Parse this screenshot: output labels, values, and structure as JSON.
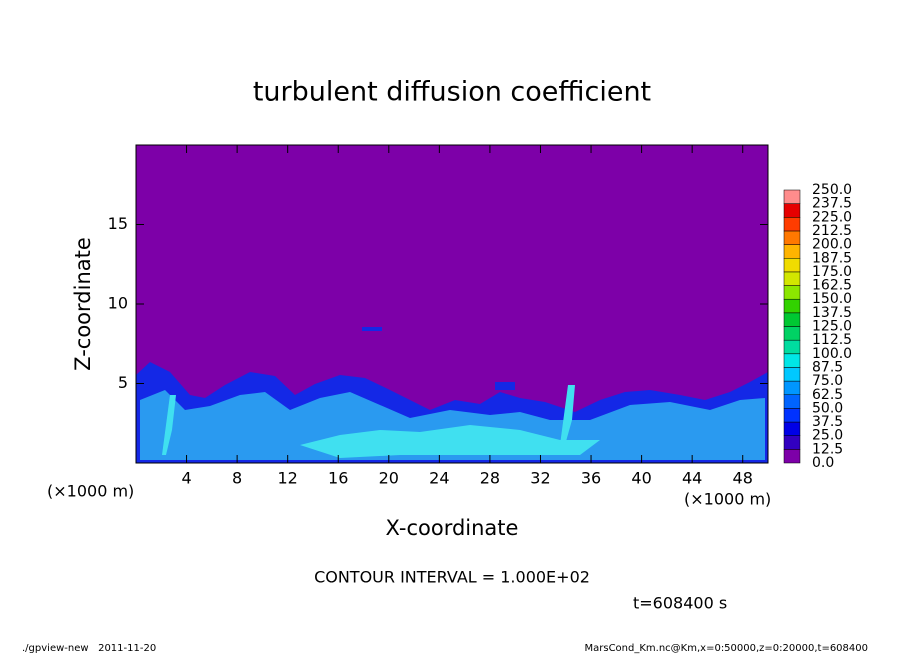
{
  "chart_data": {
    "type": "contour",
    "title": "turbulent diffusion coefficient",
    "xlabel": "X-coordinate",
    "ylabel": "Z-coordinate",
    "x_unit": "(×1000 m)",
    "y_unit": "(×1000 m)",
    "xlim": [
      0,
      50
    ],
    "ylim": [
      0,
      20
    ],
    "xticks": [
      4,
      8,
      12,
      16,
      20,
      24,
      28,
      32,
      36,
      40,
      44,
      48
    ],
    "yticks": [
      5,
      10,
      15
    ],
    "colorbar": {
      "levels": [
        {
          "value": 0,
          "label": "0.0"
        },
        {
          "value": 12.5,
          "label": "12.5"
        },
        {
          "value": 25,
          "label": "25.0"
        },
        {
          "value": 37.5,
          "label": "37.5"
        },
        {
          "value": 50,
          "label": "50.0"
        },
        {
          "value": 62.5,
          "label": "62.5"
        },
        {
          "value": 75,
          "label": "75.0"
        },
        {
          "value": 87.5,
          "label": "87.5"
        },
        {
          "value": 100,
          "label": "100.0"
        },
        {
          "value": 112.5,
          "label": "112.5"
        },
        {
          "value": 125,
          "label": "125.0"
        },
        {
          "value": 137.5,
          "label": "137.5"
        },
        {
          "value": 150,
          "label": "150.0"
        },
        {
          "value": 162.5,
          "label": "162.5"
        },
        {
          "value": 175,
          "label": "175.0"
        },
        {
          "value": 187.5,
          "label": "187.5"
        },
        {
          "value": 200,
          "label": "200.0"
        },
        {
          "value": 212.5,
          "label": "212.5"
        },
        {
          "value": 225,
          "label": "225.0"
        },
        {
          "value": 237.5,
          "label": "237.5"
        },
        {
          "value": 250,
          "label": "250.0"
        }
      ],
      "colors": [
        "#7d00a8",
        "#3200c0",
        "#0000e6",
        "#0032ff",
        "#0064ff",
        "#0096ff",
        "#00c8ff",
        "#00e6e6",
        "#00dca0",
        "#00d264",
        "#00c832",
        "#32d200",
        "#8ce600",
        "#d2e600",
        "#f0dc00",
        "#ffb400",
        "#ff7800",
        "#ff3c00",
        "#e60000",
        "#ff8c8c"
      ]
    },
    "contour_interval": "CONTOUR INTERVAL = 1.000E+02",
    "time_label": "t=608400 s",
    "footer_left": "./gpview-new   2011-11-20",
    "footer_right": "MarsCond_Km.nc@Km,x=0:50000,z=0:20000,t=608400"
  }
}
